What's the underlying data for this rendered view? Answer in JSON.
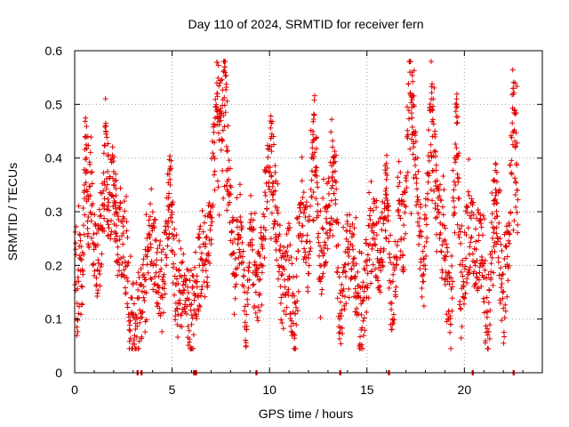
{
  "chart_data": {
    "type": "scatter",
    "title": "Day 110 of 2024, SRMTID for receiver fern",
    "xlabel": "GPS time / hours",
    "ylabel": "SRMTID / TECUs",
    "xlim": [
      0,
      24
    ],
    "ylim": [
      0,
      0.6
    ],
    "x_ticks": [
      0,
      5,
      10,
      15,
      20
    ],
    "x_tick_labels": [
      "0",
      "5",
      "10",
      "15",
      "20"
    ],
    "y_ticks": [
      0,
      0.1,
      0.2,
      0.3,
      0.4,
      0.5,
      0.6
    ],
    "y_tick_labels": [
      "0",
      "0.1",
      "0.2",
      "0.3",
      "0.4",
      "0.5",
      "0.6"
    ],
    "grid": true,
    "marker": "plus",
    "series": [
      {
        "name": "SRMTID",
        "color": "#e00000",
        "sample_points": [
          [
            0.05,
            0.23
          ],
          [
            0.1,
            0.1
          ],
          [
            0.2,
            0.17
          ],
          [
            0.3,
            0.19
          ],
          [
            0.4,
            0.16
          ],
          [
            0.5,
            0.35
          ],
          [
            0.55,
            0.44
          ],
          [
            0.6,
            0.4
          ],
          [
            0.7,
            0.29
          ],
          [
            0.8,
            0.33
          ],
          [
            1.0,
            0.24
          ],
          [
            1.2,
            0.21
          ],
          [
            1.4,
            0.27
          ],
          [
            1.6,
            0.45
          ],
          [
            1.7,
            0.31
          ],
          [
            2.0,
            0.35
          ],
          [
            2.2,
            0.22
          ],
          [
            2.5,
            0.26
          ],
          [
            2.7,
            0.2
          ],
          [
            2.8,
            0.08
          ],
          [
            3.1,
            0.1
          ],
          [
            3.6,
            0.15
          ],
          [
            3.9,
            0.24
          ],
          [
            4.2,
            0.21
          ],
          [
            4.5,
            0.14
          ],
          [
            4.9,
            0.35
          ],
          [
            5.2,
            0.13
          ],
          [
            5.6,
            0.17
          ],
          [
            6.0,
            0.09
          ],
          [
            6.4,
            0.2
          ],
          [
            6.8,
            0.22
          ],
          [
            7.0,
            0.31
          ],
          [
            7.3,
            0.52
          ],
          [
            7.5,
            0.47
          ],
          [
            7.7,
            0.57
          ],
          [
            7.9,
            0.36
          ],
          [
            8.2,
            0.18
          ],
          [
            8.5,
            0.29
          ],
          [
            8.8,
            0.05
          ],
          [
            9.0,
            0.28
          ],
          [
            9.3,
            0.15
          ],
          [
            9.6,
            0.2
          ],
          [
            9.8,
            0.33
          ],
          [
            10.1,
            0.44
          ],
          [
            10.3,
            0.31
          ],
          [
            10.6,
            0.14
          ],
          [
            11.0,
            0.21
          ],
          [
            11.3,
            0.07
          ],
          [
            11.6,
            0.3
          ],
          [
            12.0,
            0.22
          ],
          [
            12.3,
            0.48
          ],
          [
            12.6,
            0.17
          ],
          [
            12.9,
            0.26
          ],
          [
            13.3,
            0.39
          ],
          [
            13.6,
            0.1
          ],
          [
            14.0,
            0.23
          ],
          [
            14.4,
            0.18
          ],
          [
            14.7,
            0.08
          ],
          [
            15.0,
            0.2
          ],
          [
            15.3,
            0.25
          ],
          [
            15.7,
            0.21
          ],
          [
            16.0,
            0.36
          ],
          [
            16.3,
            0.09
          ],
          [
            16.6,
            0.3
          ],
          [
            16.9,
            0.25
          ],
          [
            17.2,
            0.56
          ],
          [
            17.5,
            0.4
          ],
          [
            17.9,
            0.17
          ],
          [
            18.3,
            0.51
          ],
          [
            18.6,
            0.29
          ],
          [
            19.0,
            0.21
          ],
          [
            19.3,
            0.09
          ],
          [
            19.6,
            0.5
          ],
          [
            19.8,
            0.12
          ],
          [
            20.2,
            0.27
          ],
          [
            20.6,
            0.23
          ],
          [
            20.9,
            0.21
          ],
          [
            21.2,
            0.07
          ],
          [
            21.6,
            0.33
          ],
          [
            22.0,
            0.12
          ],
          [
            22.3,
            0.26
          ],
          [
            22.5,
            0.53
          ],
          [
            22.6,
            0.42
          ],
          [
            22.7,
            0.34
          ]
        ],
        "peaks": [
          [
            0.6,
            0.44
          ],
          [
            1.6,
            0.46
          ],
          [
            2.1,
            0.37
          ],
          [
            4.9,
            0.36
          ],
          [
            7.3,
            0.54
          ],
          [
            7.7,
            0.57
          ],
          [
            10.2,
            0.44
          ],
          [
            12.3,
            0.48
          ],
          [
            13.3,
            0.4
          ],
          [
            16.0,
            0.39
          ],
          [
            17.3,
            0.56
          ],
          [
            18.4,
            0.51
          ],
          [
            19.6,
            0.51
          ],
          [
            21.6,
            0.39
          ],
          [
            22.6,
            0.54
          ]
        ]
      }
    ],
    "zero_markers_x": [
      3.2,
      3.4,
      6.1,
      6.2,
      9.3,
      13.6,
      16.1,
      20.4,
      22.5
    ]
  }
}
